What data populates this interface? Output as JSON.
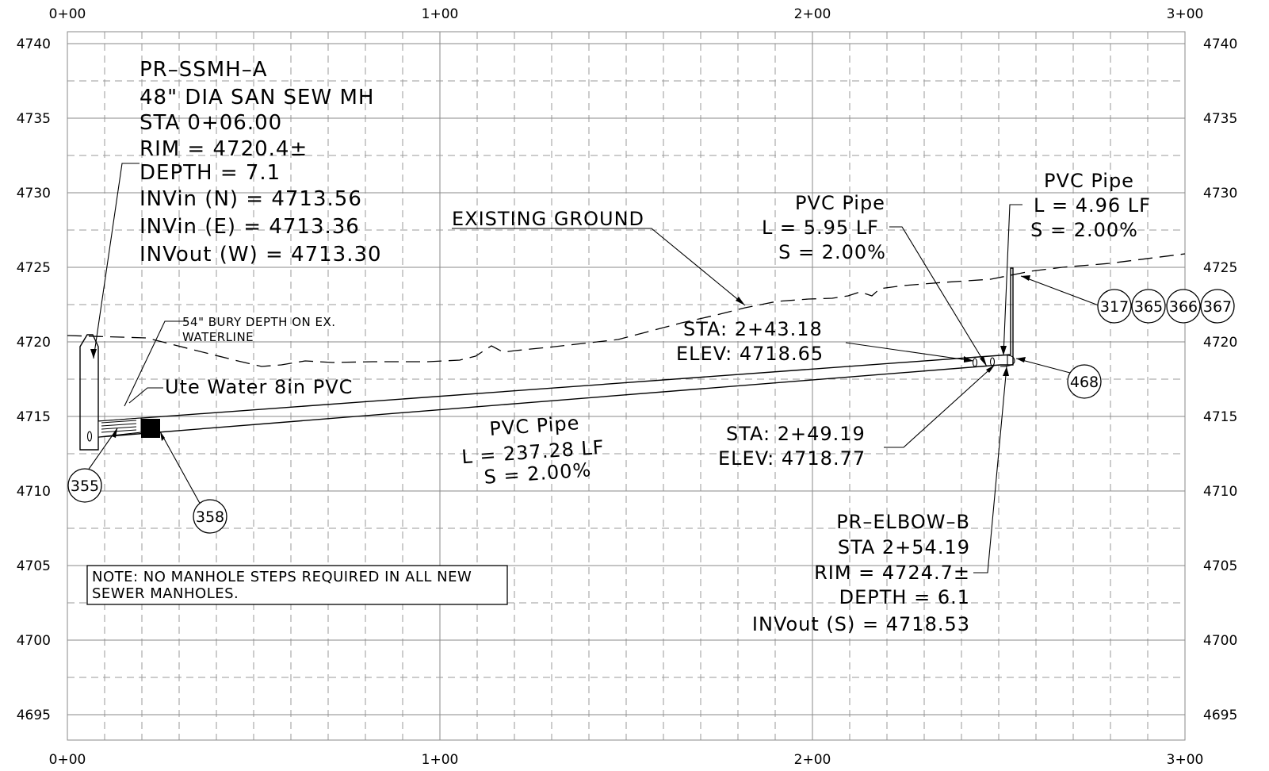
{
  "stations": {
    "top": [
      "0+00",
      "1+00",
      "2+00",
      "3+00"
    ],
    "bottom": [
      "0+00",
      "1+00",
      "2+00",
      "3+00"
    ]
  },
  "elevations": {
    "left": [
      "4740",
      "4735",
      "4730",
      "4725",
      "4720",
      "4715",
      "4710",
      "4705",
      "4700",
      "4695"
    ],
    "right": [
      "4740",
      "4735",
      "4730",
      "4725",
      "4720",
      "4715",
      "4710",
      "4705",
      "4700",
      "4695"
    ]
  },
  "manhole_a": {
    "lines": [
      "PR–SSMH–A",
      "48\" DIA SAN SEW MH",
      "STA 0+06.00",
      "RIM = 4720.4±",
      "DEPTH = 7.1",
      "INVin (N) = 4713.56",
      "INVin (E) = 4713.36",
      "INVout (W) = 4713.30"
    ]
  },
  "existing_ground": "EXISTING GROUND",
  "pipe_short_1": {
    "lines": [
      "PVC Pipe",
      "L = 5.95 LF",
      "S = 2.00%"
    ]
  },
  "pipe_short_2": {
    "lines": [
      "PVC Pipe",
      "L = 4.96 LF",
      "S = 2.00%"
    ]
  },
  "bury_note": {
    "lines": [
      "54\" BURY DEPTH ON EX.",
      "WATERLINE"
    ]
  },
  "waterline": "Ute Water 8in PVC",
  "sta_point_1": {
    "lines": [
      "STA: 2+43.18",
      "ELEV: 4718.65"
    ]
  },
  "sta_point_2": {
    "lines": [
      "STA: 2+49.19",
      "ELEV: 4718.77"
    ]
  },
  "pipe_main": {
    "lines": [
      "PVC Pipe",
      "L = 237.28 LF",
      "S = 2.00%"
    ]
  },
  "elbow_b": {
    "lines": [
      "PR–ELBOW–B",
      "STA 2+54.19",
      "RIM = 4724.7±",
      "DEPTH = 6.1",
      "INVout (S) = 4718.53"
    ]
  },
  "note": {
    "lines": [
      "NOTE: NO MANHOLE STEPS REQUIRED IN ALL NEW",
      "SEWER MANHOLES."
    ]
  },
  "callouts": [
    "317",
    "365",
    "366",
    "367",
    "468",
    "355",
    "358"
  ]
}
